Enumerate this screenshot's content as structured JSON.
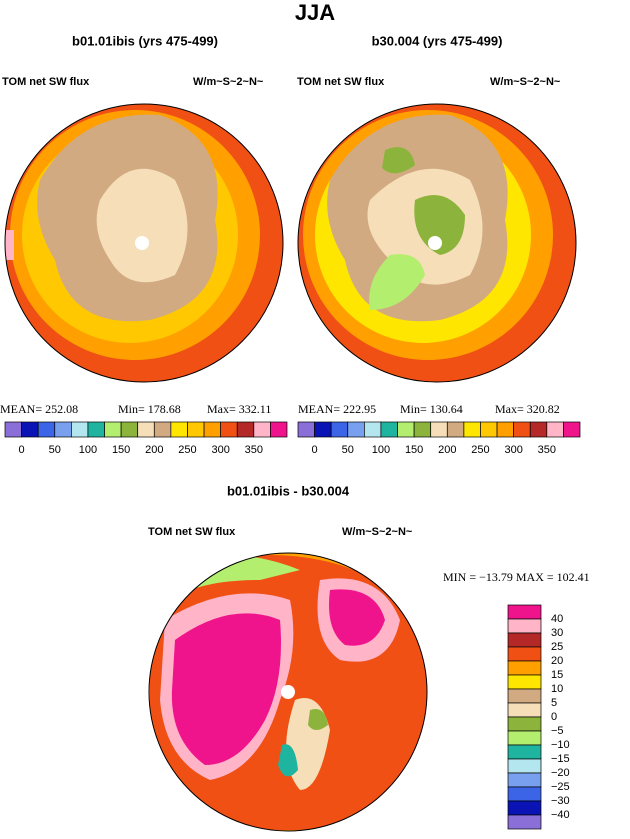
{
  "header": {
    "title": "JJA"
  },
  "panels": [
    {
      "subtitle": "b01.01ibis (yrs 475-499)",
      "left_label": "TOM net SW flux",
      "right_label": "W/m~S~2~N~",
      "stats": [
        "MEAN= 252.08",
        "Min= 178.68",
        "Max= 332.11"
      ]
    },
    {
      "subtitle": "b30.004 (yrs 475-499)",
      "left_label": "TOM net SW flux",
      "right_label": "W/m~S~2~N~",
      "stats": [
        "MEAN= 222.95",
        "Min= 130.64",
        "Max= 320.82"
      ]
    },
    {
      "subtitle": "b01.01ibis - b30.004",
      "left_label": "TOM net SW flux",
      "right_label": "W/m~S~2~N~",
      "stats": [
        "MIN = −13.79 MAX = 102.41"
      ]
    }
  ],
  "colorbar_abs": {
    "colors": [
      "#8a6fd8",
      "#0a14b4",
      "#3c64e6",
      "#78a0ee",
      "#b4e6f0",
      "#1eb4a0",
      "#b4ee6e",
      "#8cb43c",
      "#f5deb8",
      "#d2aa82",
      "#ffe600",
      "#ffc800",
      "#ffa000",
      "#f05014",
      "#b42828",
      "#ffb4c8",
      "#f0148c"
    ],
    "labels": [
      "0",
      "50",
      "100",
      "150",
      "200",
      "250",
      "300",
      "350"
    ]
  },
  "colorbar_diff": {
    "colors": [
      "#f0148c",
      "#ffb4c8",
      "#b42828",
      "#f05014",
      "#ffa000",
      "#ffe600",
      "#d2aa82",
      "#f5deb8",
      "#8cb43c",
      "#b4ee6e",
      "#1eb4a0",
      "#b4e6f0",
      "#78a0ee",
      "#3c64e6",
      "#0a14b4",
      "#8a6fd8"
    ],
    "labels": [
      "40",
      "30",
      "25",
      "20",
      "15",
      "10",
      "5",
      "0",
      "−5",
      "−10",
      "−15",
      "−20",
      "−25",
      "−30",
      "−40"
    ]
  }
}
